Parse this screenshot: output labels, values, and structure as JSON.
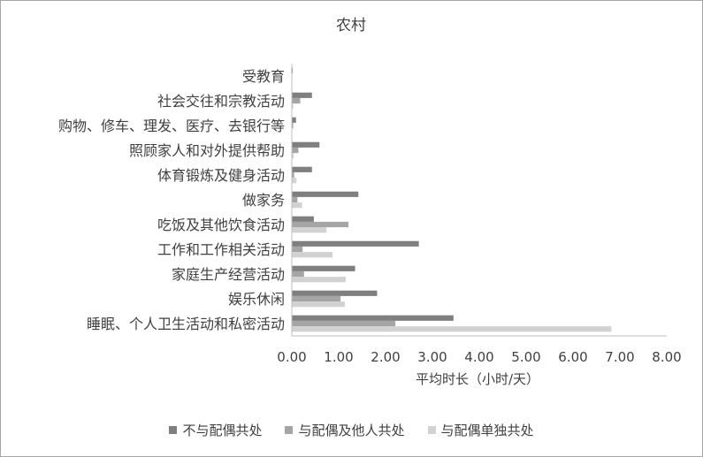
{
  "chart_data": {
    "type": "bar",
    "orientation": "horizontal",
    "title": "农村",
    "xlabel": "平均时长（小时/天）",
    "ylabel": "",
    "xlim": [
      0,
      8
    ],
    "x_ticks": [
      "0.00",
      "1.00",
      "2.00",
      "3.00",
      "4.00",
      "5.00",
      "6.00",
      "7.00",
      "8.00"
    ],
    "grid": false,
    "legend_position": "bottom",
    "categories": [
      "受教育",
      "社会交往和宗教活动",
      "购物、修车、理发、医疗、去银行等",
      "照顾家人和对外提供帮助",
      "体育锻炼及健身活动",
      "做家务",
      "吃饭及其他饮食活动",
      "工作和工作相关活动",
      "家庭生产经营活动",
      "娱乐休闲",
      "睡眠、个人卫生活动和私密活动"
    ],
    "series": [
      {
        "name": "不与配偶共处",
        "color": "#7f7f7f",
        "values": [
          0.02,
          0.43,
          0.09,
          0.59,
          0.43,
          1.42,
          0.47,
          2.71,
          1.35,
          1.82,
          3.45
        ]
      },
      {
        "name": "与配偶及他人共处",
        "color": "#a5a5a5",
        "values": [
          0.01,
          0.18,
          0.03,
          0.14,
          0.05,
          0.12,
          1.21,
          0.23,
          0.26,
          1.04,
          2.21
        ]
      },
      {
        "name": "与配偶单独共处",
        "color": "#d2d2d2",
        "values": [
          0.0,
          0.03,
          0.01,
          0.04,
          0.1,
          0.22,
          0.74,
          0.87,
          1.15,
          1.13,
          6.82
        ]
      }
    ]
  }
}
